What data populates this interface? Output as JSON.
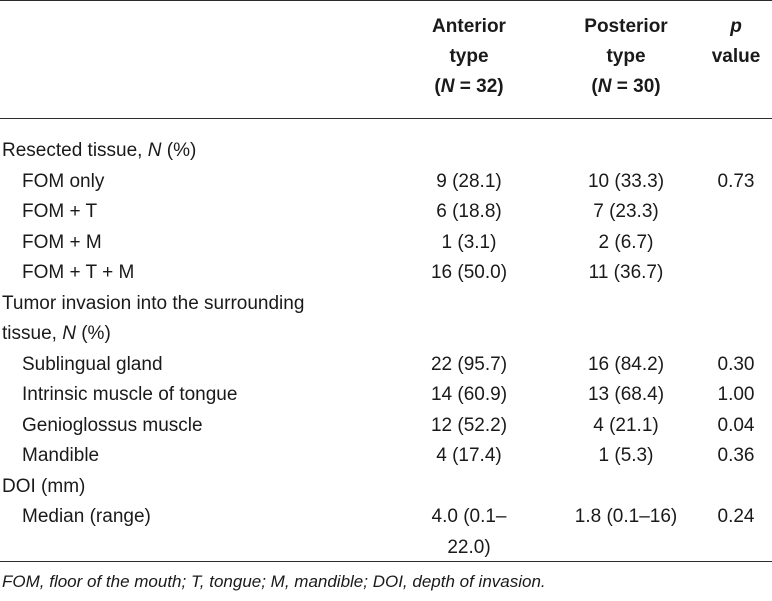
{
  "header": {
    "col1": [
      "Anterior",
      "type",
      "(N = 32)"
    ],
    "col2": [
      "Posterior",
      "type",
      "(N = 30)"
    ],
    "col3": [
      "p",
      "value"
    ]
  },
  "rows": [
    {
      "label": "Resected tissue, N (%)",
      "indent": false,
      "c1": "",
      "c2": "",
      "c3": ""
    },
    {
      "label": "FOM only",
      "indent": true,
      "c1": "9 (28.1)",
      "c2": "10 (33.3)",
      "c3": "0.73"
    },
    {
      "label": "FOM + T",
      "indent": true,
      "c1": "6 (18.8)",
      "c2": "7 (23.3)",
      "c3": ""
    },
    {
      "label": "FOM + M",
      "indent": true,
      "c1": "1 (3.1)",
      "c2": "2 (6.7)",
      "c3": ""
    },
    {
      "label": "FOM + T + M",
      "indent": true,
      "c1": "16 (50.0)",
      "c2": "11 (36.7)",
      "c3": ""
    },
    {
      "label": "Tumor invasion into the surrounding",
      "indent": false,
      "c1": "",
      "c2": "",
      "c3": ""
    },
    {
      "label": "tissue, N (%)",
      "indent": false,
      "c1": "",
      "c2": "",
      "c3": ""
    },
    {
      "label": "Sublingual gland",
      "indent": true,
      "c1": "22 (95.7)",
      "c2": "16 (84.2)",
      "c3": "0.30"
    },
    {
      "label": "Intrinsic muscle of tongue",
      "indent": true,
      "c1": "14 (60.9)",
      "c2": "13 (68.4)",
      "c3": "1.00"
    },
    {
      "label": "Genioglossus muscle",
      "indent": true,
      "c1": "12 (52.2)",
      "c2": "4 (21.1)",
      "c3": "0.04"
    },
    {
      "label": "Mandible",
      "indent": true,
      "c1": "4 (17.4)",
      "c2": "1 (5.3)",
      "c3": "0.36"
    },
    {
      "label": "DOI (mm)",
      "indent": false,
      "c1": "",
      "c2": "",
      "c3": ""
    },
    {
      "label": "Median (range)",
      "indent": true,
      "c1": "4.0 (0.1–",
      "c2": "1.8 (0.1–16)",
      "c3": "0.24"
    },
    {
      "label": "",
      "indent": false,
      "c1": "22.0)",
      "c2": "",
      "c3": ""
    }
  ],
  "footnote": "FOM, floor of the mouth; T, tongue; M, mandible; DOI, depth of invasion."
}
